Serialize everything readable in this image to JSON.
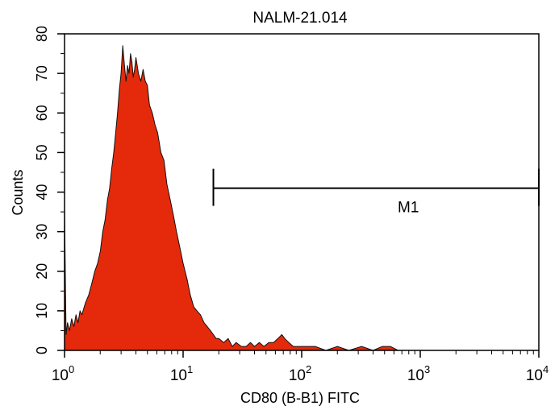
{
  "chart_data": {
    "type": "area",
    "title": "NALM-21.014",
    "xlabel": "CD80 (B-B1) FITC",
    "ylabel": "Counts",
    "x_scale": "log",
    "xlim": [
      1,
      10000
    ],
    "ylim": [
      0,
      80
    ],
    "x_ticks": [
      {
        "base": "10",
        "exp": "0",
        "value": 1
      },
      {
        "base": "10",
        "exp": "1",
        "value": 10
      },
      {
        "base": "10",
        "exp": "2",
        "value": 100
      },
      {
        "base": "10",
        "exp": "3",
        "value": 1000
      },
      {
        "base": "10",
        "exp": "4",
        "value": 10000
      }
    ],
    "y_ticks": [
      "0",
      "10",
      "20",
      "30",
      "40",
      "50",
      "60",
      "70",
      "80"
    ],
    "fill_color": "#e52a0b",
    "series": [
      {
        "values": [
          [
            1.0,
            36
          ],
          [
            1.03,
            4
          ],
          [
            1.06,
            7
          ],
          [
            1.1,
            5
          ],
          [
            1.15,
            8
          ],
          [
            1.2,
            6
          ],
          [
            1.25,
            9
          ],
          [
            1.3,
            7
          ],
          [
            1.35,
            10
          ],
          [
            1.4,
            9
          ],
          [
            1.5,
            12
          ],
          [
            1.6,
            14
          ],
          [
            1.7,
            17
          ],
          [
            1.8,
            20
          ],
          [
            1.9,
            22
          ],
          [
            2.0,
            25
          ],
          [
            2.1,
            30
          ],
          [
            2.2,
            33
          ],
          [
            2.3,
            38
          ],
          [
            2.4,
            41
          ],
          [
            2.5,
            46
          ],
          [
            2.6,
            50
          ],
          [
            2.7,
            55
          ],
          [
            2.8,
            60
          ],
          [
            2.9,
            66
          ],
          [
            3.0,
            70
          ],
          [
            3.1,
            77
          ],
          [
            3.2,
            72
          ],
          [
            3.3,
            68
          ],
          [
            3.4,
            72
          ],
          [
            3.5,
            70
          ],
          [
            3.6,
            75
          ],
          [
            3.7,
            73
          ],
          [
            3.8,
            69
          ],
          [
            3.9,
            71
          ],
          [
            4.0,
            74
          ],
          [
            4.1,
            72
          ],
          [
            4.2,
            70
          ],
          [
            4.4,
            68
          ],
          [
            4.6,
            71
          ],
          [
            4.8,
            68
          ],
          [
            5.0,
            67
          ],
          [
            5.2,
            62
          ],
          [
            5.5,
            60
          ],
          [
            5.8,
            57
          ],
          [
            6.1,
            55
          ],
          [
            6.5,
            50
          ],
          [
            6.9,
            48
          ],
          [
            7.3,
            42
          ],
          [
            7.8,
            38
          ],
          [
            8.3,
            34
          ],
          [
            8.8,
            30
          ],
          [
            9.4,
            26
          ],
          [
            10,
            22
          ],
          [
            10.8,
            18
          ],
          [
            11.5,
            14
          ],
          [
            12.3,
            11
          ],
          [
            13.1,
            10
          ],
          [
            14,
            9
          ],
          [
            15,
            7
          ],
          [
            16,
            6
          ],
          [
            17,
            5
          ],
          [
            18,
            4
          ],
          [
            19,
            3
          ],
          [
            20,
            3
          ],
          [
            22,
            2
          ],
          [
            24,
            3
          ],
          [
            26,
            1
          ],
          [
            28,
            2
          ],
          [
            31,
            1
          ],
          [
            34,
            1
          ],
          [
            37,
            2
          ],
          [
            40,
            1
          ],
          [
            44,
            2
          ],
          [
            48,
            1
          ],
          [
            53,
            2
          ],
          [
            58,
            2
          ],
          [
            63,
            3
          ],
          [
            68,
            4
          ],
          [
            72,
            3
          ],
          [
            78,
            2
          ],
          [
            85,
            1
          ],
          [
            95,
            1
          ],
          [
            110,
            1
          ],
          [
            130,
            1
          ],
          [
            160,
            0
          ],
          [
            200,
            1
          ],
          [
            250,
            0
          ],
          [
            320,
            1
          ],
          [
            400,
            0
          ],
          [
            480,
            1
          ],
          [
            560,
            1
          ],
          [
            650,
            0
          ],
          [
            800,
            0
          ],
          [
            1200,
            0
          ],
          [
            2500,
            0
          ],
          [
            5000,
            0
          ],
          [
            10000,
            0
          ]
        ]
      }
    ],
    "marker": {
      "label": "M1",
      "x_start": 18,
      "x_end": 10000,
      "y": 41
    }
  }
}
